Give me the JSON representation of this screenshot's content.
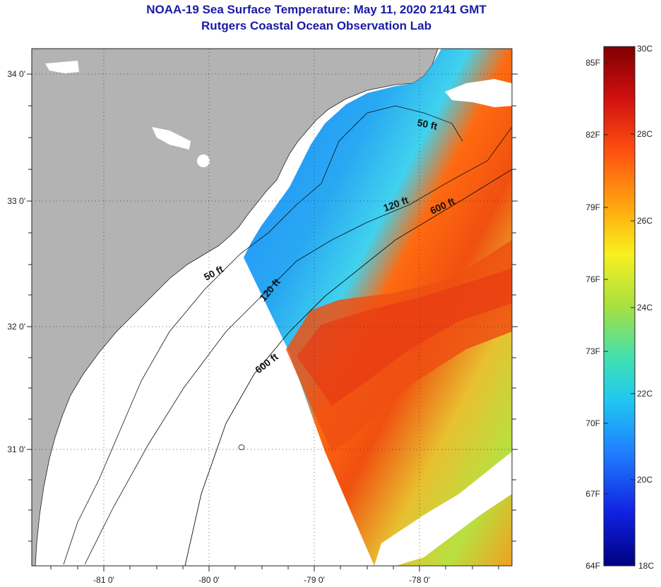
{
  "title": {
    "line1": "NOAA-19 Sea Surface Temperature:  May 11, 2020 2141 GMT",
    "line2": "Rutgers Coastal Ocean Observation Lab"
  },
  "map": {
    "lat_labels": [
      "34 0'",
      "33 0'",
      "32 0'",
      "31 0'"
    ],
    "lon_labels": [
      "-81 0'",
      "-80 0'",
      "-79 0'",
      "-78 0'"
    ],
    "contour_labels": [
      "50 ft",
      "120 ft",
      "600 ft",
      "50 ft",
      "120 ft",
      "600 ft"
    ],
    "colors": {
      "land": "#b3b3b3",
      "cold": "#1e90ff",
      "cool": "#33c8f0",
      "warm": "#ff5a10",
      "hot": "#f04010",
      "mild": "#b8e040"
    }
  },
  "colorbar": {
    "fahrenheit": [
      "85F",
      "82F",
      "79F",
      "76F",
      "73F",
      "70F",
      "67F",
      "64F"
    ],
    "celsius": [
      "30C",
      "28C",
      "26C",
      "24C",
      "22C",
      "20C",
      "18C"
    ]
  }
}
